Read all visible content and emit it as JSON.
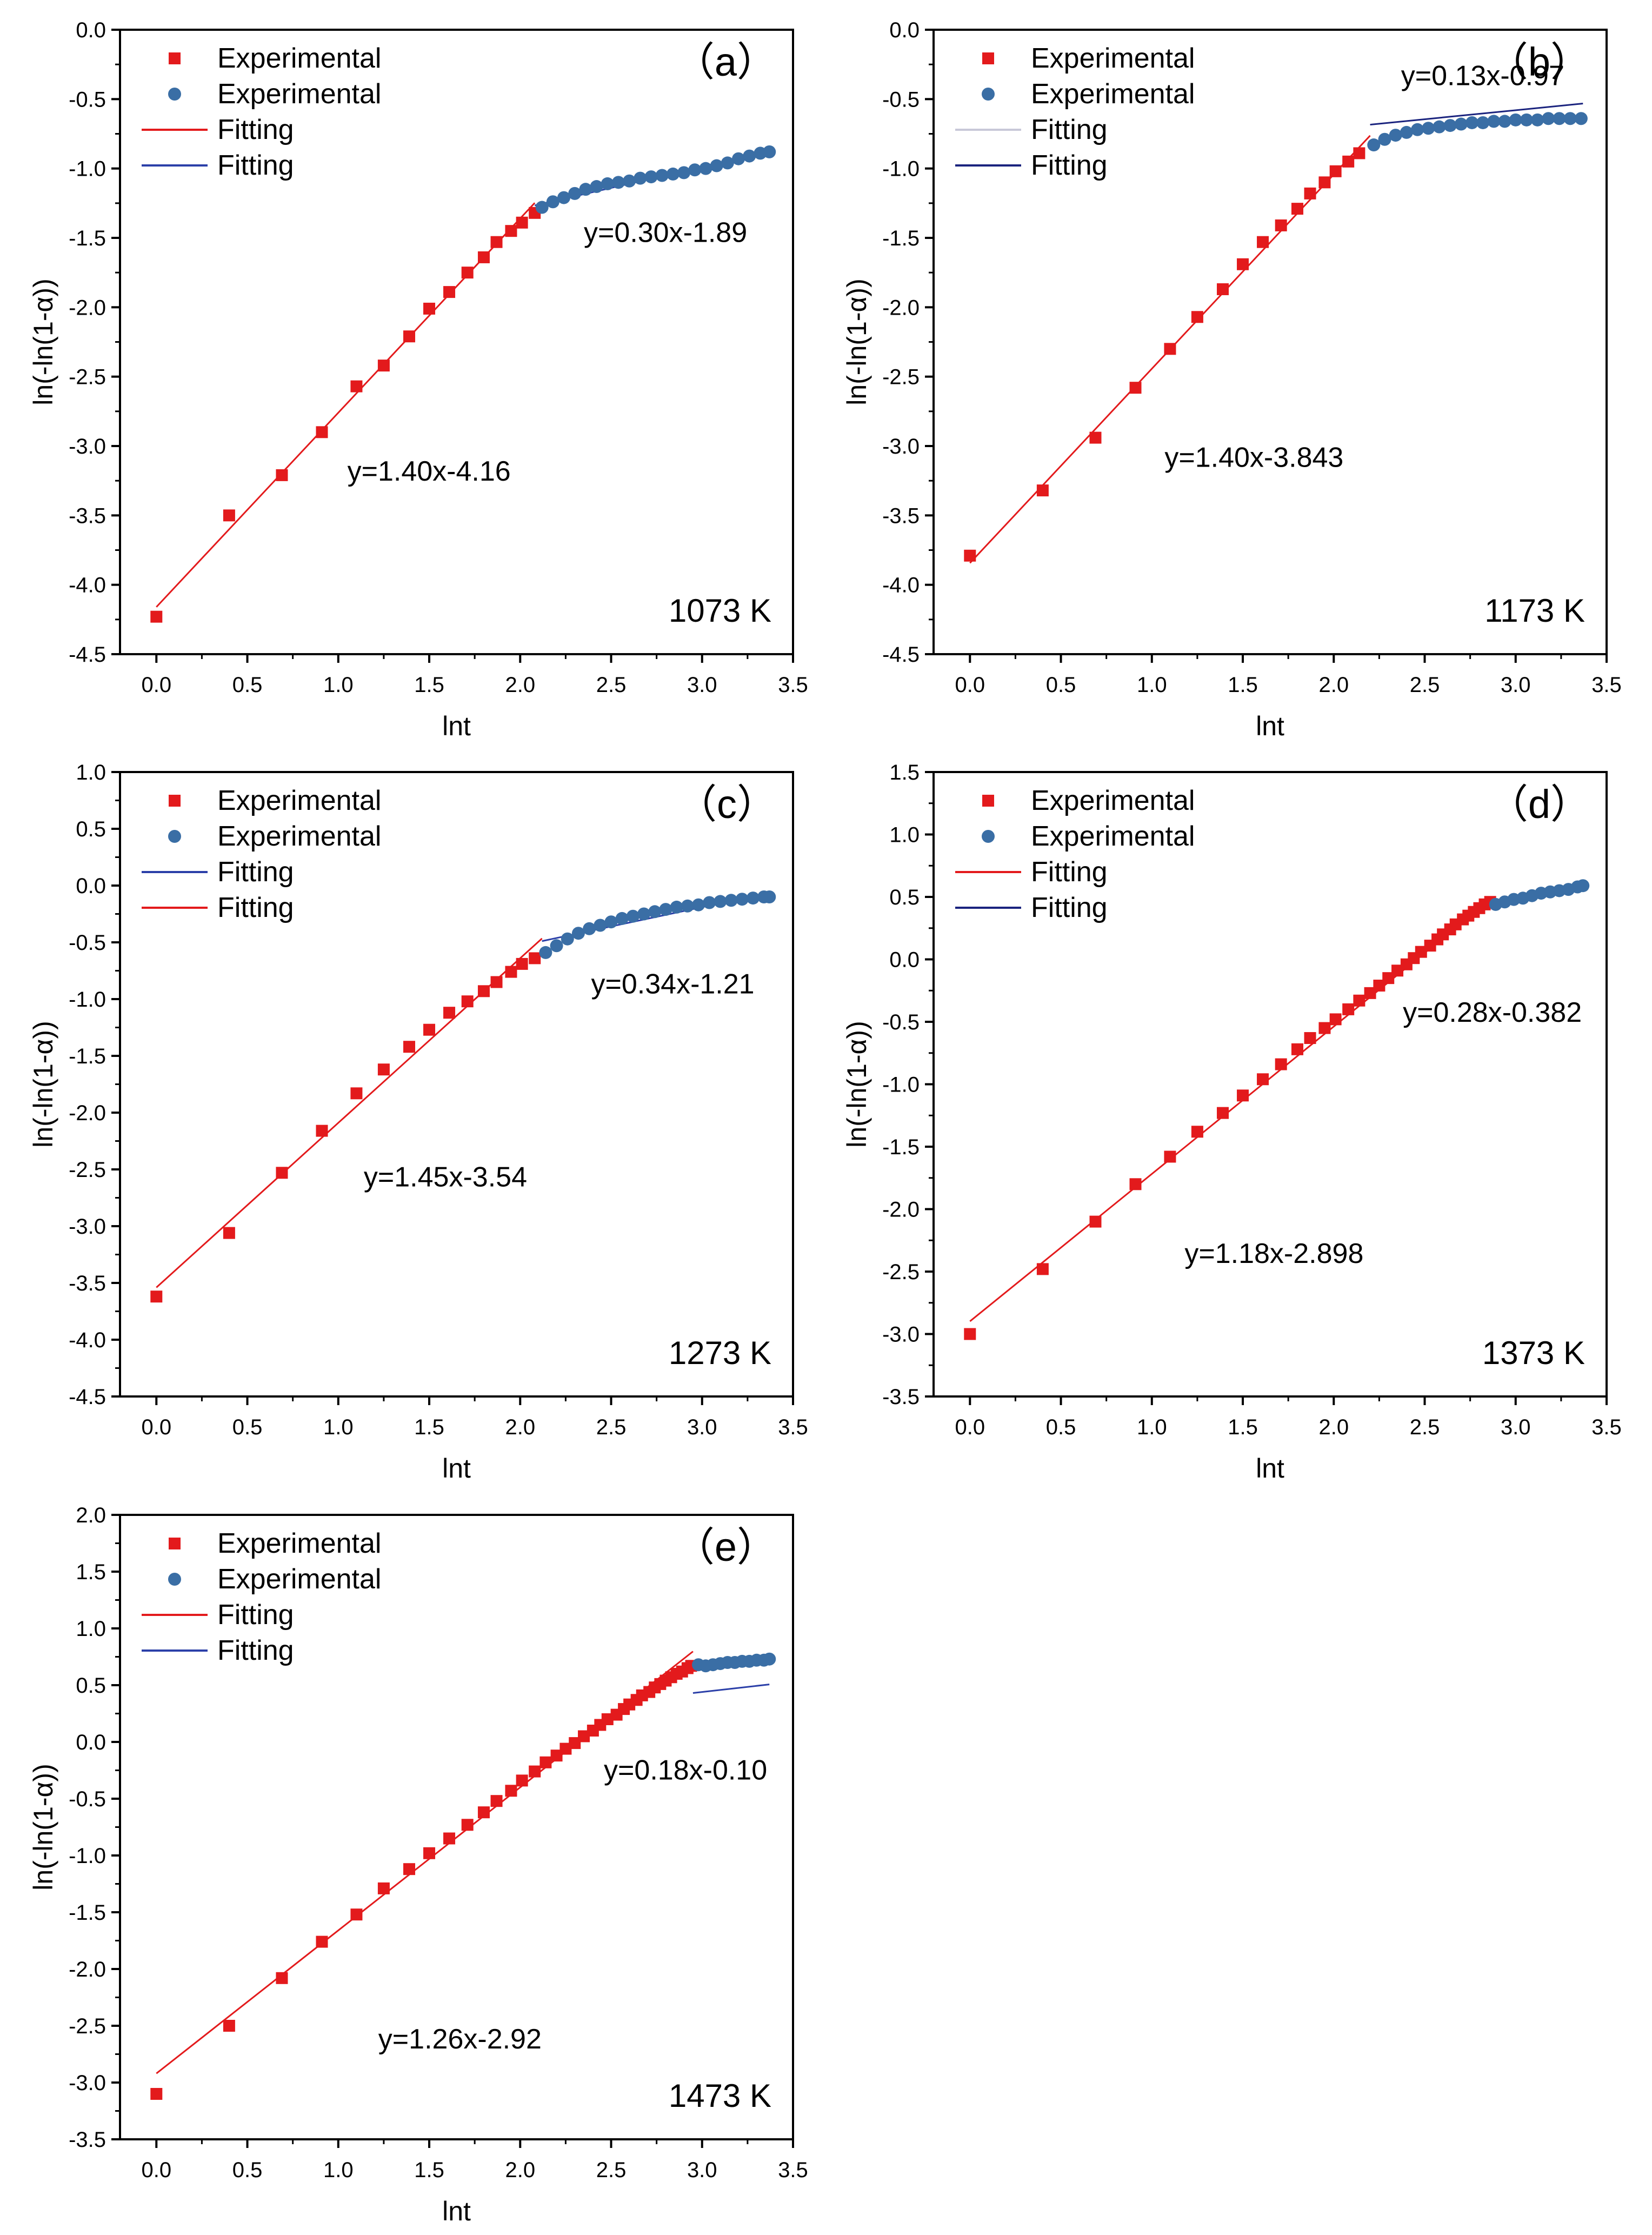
{
  "colors": {
    "red": "#e31a1c",
    "blue": "#3a6ea5",
    "fit_red": "#e31a1c",
    "fit_blue": "#2b3fa8",
    "fit_dark": "#1a237e",
    "fit_light": "#c8c8d8"
  },
  "chart_data": [
    {
      "type": "scatter",
      "panel_label": "（a）",
      "temperature_label": "1073 K",
      "xlabel": "lnt",
      "ylabel": "ln(-ln(1-α))",
      "xlim": [
        -0.2,
        3.5
      ],
      "ylim": [
        -4.5,
        0.0
      ],
      "x_ticks": [
        "0.0",
        "0.5",
        "1.0",
        "1.5",
        "2.0",
        "2.5",
        "3.0",
        "3.5"
      ],
      "y_ticks": [
        "0.0",
        "-0.5",
        "-1.0",
        "-1.5",
        "-2.0",
        "-2.5",
        "-3.0",
        "-3.5",
        "-4.0",
        "-4.5"
      ],
      "legend": [
        "Experimental",
        "Experimental",
        "Fitting",
        "Fitting"
      ],
      "legend_line_colors": [
        "fit_red",
        "fit_blue"
      ],
      "fits": [
        {
          "slope": 1.4,
          "intercept": -4.16,
          "x_range": [
            0.0,
            2.08
          ],
          "color": "fit_red",
          "label": "y=1.40x-4.16"
        },
        {
          "slope": 0.3,
          "intercept": -1.89,
          "x_range": [
            2.08,
            3.37
          ],
          "color": "fit_blue",
          "label": "y=0.30x-1.89"
        }
      ],
      "series": [
        {
          "name": "Experimental (stage 1)",
          "marker": "square",
          "color": "red",
          "x": [
            0.0,
            0.4,
            0.69,
            0.91,
            1.1,
            1.25,
            1.39,
            1.5,
            1.61,
            1.71,
            1.8,
            1.87,
            1.95,
            2.01,
            2.08
          ],
          "y": [
            -4.23,
            -3.5,
            -3.21,
            -2.9,
            -2.57,
            -2.42,
            -2.21,
            -2.01,
            -1.89,
            -1.75,
            -1.64,
            -1.53,
            -1.45,
            -1.39,
            -1.32
          ]
        },
        {
          "name": "Experimental (stage 2)",
          "marker": "circle",
          "color": "blue",
          "x": [
            2.12,
            2.18,
            2.24,
            2.3,
            2.36,
            2.42,
            2.48,
            2.54,
            2.6,
            2.66,
            2.72,
            2.78,
            2.84,
            2.9,
            2.96,
            3.02,
            3.08,
            3.14,
            3.2,
            3.26,
            3.32,
            3.37
          ],
          "y": [
            -1.28,
            -1.24,
            -1.21,
            -1.18,
            -1.15,
            -1.13,
            -1.11,
            -1.1,
            -1.09,
            -1.07,
            -1.06,
            -1.05,
            -1.04,
            -1.03,
            -1.01,
            -1.0,
            -0.98,
            -0.96,
            -0.93,
            -0.91,
            -0.89,
            -0.88
          ]
        }
      ]
    },
    {
      "type": "scatter",
      "panel_label": "（b）",
      "temperature_label": "1173 K",
      "xlabel": "lnt",
      "ylabel": "ln(-ln(1-α))",
      "xlim": [
        -0.2,
        3.5
      ],
      "ylim": [
        -4.5,
        0.0
      ],
      "x_ticks": [
        "0.0",
        "0.5",
        "1.0",
        "1.5",
        "2.0",
        "2.5",
        "3.0",
        "3.5"
      ],
      "y_ticks": [
        "0.0",
        "-0.5",
        "-1.0",
        "-1.5",
        "-2.0",
        "-2.5",
        "-3.0",
        "-3.5",
        "-4.0",
        "-4.5"
      ],
      "legend": [
        "Experimental",
        "Experimental",
        "Fitting",
        "Fitting"
      ],
      "legend_line_colors": [
        "fit_light",
        "fit_dark"
      ],
      "fits": [
        {
          "slope": 1.4,
          "intercept": -3.843,
          "x_range": [
            0.0,
            2.2
          ],
          "color": "fit_red",
          "label": "y=1.40x-3.843"
        },
        {
          "slope": 0.13,
          "intercept": -0.97,
          "x_range": [
            2.2,
            3.37
          ],
          "color": "fit_dark",
          "label": "y=0.13x-0.97"
        }
      ],
      "series": [
        {
          "name": "Experimental (stage 1)",
          "marker": "square",
          "color": "red",
          "x": [
            0.0,
            0.4,
            0.69,
            0.91,
            1.1,
            1.25,
            1.39,
            1.5,
            1.61,
            1.71,
            1.8,
            1.87,
            1.95,
            2.01,
            2.08,
            2.14
          ],
          "y": [
            -3.79,
            -3.32,
            -2.94,
            -2.58,
            -2.3,
            -2.07,
            -1.87,
            -1.69,
            -1.53,
            -1.41,
            -1.29,
            -1.18,
            -1.1,
            -1.02,
            -0.95,
            -0.89
          ]
        },
        {
          "name": "Experimental (stage 2)",
          "marker": "circle",
          "color": "blue",
          "x": [
            2.22,
            2.28,
            2.34,
            2.4,
            2.46,
            2.52,
            2.58,
            2.64,
            2.7,
            2.76,
            2.82,
            2.88,
            2.94,
            3.0,
            3.06,
            3.12,
            3.18,
            3.24,
            3.3,
            3.36
          ],
          "y": [
            -0.83,
            -0.79,
            -0.76,
            -0.74,
            -0.72,
            -0.71,
            -0.7,
            -0.69,
            -0.68,
            -0.67,
            -0.67,
            -0.66,
            -0.66,
            -0.65,
            -0.65,
            -0.65,
            -0.64,
            -0.64,
            -0.64,
            -0.64
          ]
        }
      ]
    },
    {
      "type": "scatter",
      "panel_label": "（c）",
      "temperature_label": "1273 K",
      "xlabel": "lnt",
      "ylabel": "ln(-ln(1-α))",
      "xlim": [
        -0.2,
        3.5
      ],
      "ylim": [
        -4.5,
        1.0
      ],
      "x_ticks": [
        "0.0",
        "0.5",
        "1.0",
        "1.5",
        "2.0",
        "2.5",
        "3.0",
        "3.5"
      ],
      "y_ticks": [
        "1.0",
        "0.5",
        "0.0",
        "-0.5",
        "-1.0",
        "-1.5",
        "-2.0",
        "-2.5",
        "-3.0",
        "-3.5",
        "-4.0",
        "-4.5"
      ],
      "legend": [
        "Experimental",
        "Experimental",
        "Fitting",
        "Fitting"
      ],
      "legend_line_colors": [
        "fit_blue",
        "fit_red"
      ],
      "fits": [
        {
          "slope": 1.45,
          "intercept": -3.54,
          "x_range": [
            0.0,
            2.12
          ],
          "color": "fit_red",
          "label": "y=1.45x-3.54"
        },
        {
          "slope": 0.34,
          "intercept": -1.21,
          "x_range": [
            2.12,
            3.37
          ],
          "color": "fit_blue",
          "label": "y=0.34x-1.21"
        }
      ],
      "series": [
        {
          "name": "Experimental (stage 1)",
          "marker": "square",
          "color": "red",
          "x": [
            0.0,
            0.4,
            0.69,
            0.91,
            1.1,
            1.25,
            1.39,
            1.5,
            1.61,
            1.71,
            1.8,
            1.87,
            1.95,
            2.01,
            2.08
          ],
          "y": [
            -3.62,
            -3.06,
            -2.53,
            -2.16,
            -1.83,
            -1.62,
            -1.42,
            -1.27,
            -1.12,
            -1.02,
            -0.93,
            -0.85,
            -0.76,
            -0.69,
            -0.64
          ]
        },
        {
          "name": "Experimental (stage 2)",
          "marker": "circle",
          "color": "blue",
          "x": [
            2.14,
            2.2,
            2.26,
            2.32,
            2.38,
            2.44,
            2.5,
            2.56,
            2.62,
            2.68,
            2.74,
            2.8,
            2.86,
            2.92,
            2.98,
            3.04,
            3.1,
            3.16,
            3.22,
            3.28,
            3.34,
            3.37
          ],
          "y": [
            -0.59,
            -0.53,
            -0.47,
            -0.42,
            -0.38,
            -0.35,
            -0.32,
            -0.29,
            -0.27,
            -0.25,
            -0.23,
            -0.21,
            -0.19,
            -0.18,
            -0.17,
            -0.15,
            -0.14,
            -0.13,
            -0.12,
            -0.11,
            -0.1,
            -0.1
          ]
        }
      ]
    },
    {
      "type": "scatter",
      "panel_label": "（d）",
      "temperature_label": "1373 K",
      "xlabel": "lnt",
      "ylabel": "ln(-ln(1-α))",
      "xlim": [
        -0.2,
        3.5
      ],
      "ylim": [
        -3.5,
        1.5
      ],
      "x_ticks": [
        "0.0",
        "0.5",
        "1.0",
        "1.5",
        "2.0",
        "2.5",
        "3.0",
        "3.5"
      ],
      "y_ticks": [
        "1.5",
        "1.0",
        "0.5",
        "0.0",
        "-0.5",
        "-1.0",
        "-1.5",
        "-2.0",
        "-2.5",
        "-3.0",
        "-3.5"
      ],
      "legend": [
        "Experimental",
        "Experimental",
        "Fitting",
        "Fitting"
      ],
      "legend_line_colors": [
        "fit_red",
        "fit_dark"
      ],
      "fits": [
        {
          "slope": 1.18,
          "intercept": -2.898,
          "x_range": [
            0.0,
            2.88
          ],
          "color": "fit_red",
          "label": "y=1.18x-2.898"
        },
        {
          "slope": 0.28,
          "intercept": -0.382,
          "x_range": [
            2.88,
            3.37
          ],
          "color": "fit_blue",
          "label": "y=0.28x-0.382"
        }
      ],
      "series": [
        {
          "name": "Experimental (stage 1)",
          "marker": "square",
          "color": "red",
          "x": [
            0.0,
            0.4,
            0.69,
            0.91,
            1.1,
            1.25,
            1.39,
            1.5,
            1.61,
            1.71,
            1.8,
            1.87,
            1.95,
            2.01,
            2.08,
            2.14,
            2.2,
            2.25,
            2.3,
            2.35,
            2.4,
            2.44,
            2.48,
            2.53,
            2.57,
            2.6,
            2.64,
            2.67,
            2.71,
            2.74,
            2.77,
            2.8,
            2.83,
            2.86
          ],
          "y": [
            -3.0,
            -2.48,
            -2.1,
            -1.8,
            -1.58,
            -1.38,
            -1.23,
            -1.09,
            -0.96,
            -0.84,
            -0.72,
            -0.63,
            -0.55,
            -0.48,
            -0.4,
            -0.33,
            -0.27,
            -0.21,
            -0.15,
            -0.09,
            -0.04,
            0.01,
            0.06,
            0.11,
            0.16,
            0.2,
            0.24,
            0.28,
            0.32,
            0.35,
            0.38,
            0.41,
            0.44,
            0.46
          ]
        },
        {
          "name": "Experimental (stage 2)",
          "marker": "circle",
          "color": "blue",
          "x": [
            2.89,
            2.94,
            2.99,
            3.04,
            3.09,
            3.14,
            3.19,
            3.24,
            3.29,
            3.34,
            3.37
          ],
          "y": [
            0.44,
            0.46,
            0.48,
            0.49,
            0.51,
            0.53,
            0.54,
            0.55,
            0.56,
            0.58,
            0.59
          ]
        }
      ]
    },
    {
      "type": "scatter",
      "panel_label": "（e）",
      "temperature_label": "1473 K",
      "xlabel": "lnt",
      "ylabel": "ln(-ln(1-α))",
      "xlim": [
        -0.2,
        3.5
      ],
      "ylim": [
        -3.5,
        2.0
      ],
      "x_ticks": [
        "0.0",
        "0.5",
        "1.0",
        "1.5",
        "2.0",
        "2.5",
        "3.0",
        "3.5"
      ],
      "y_ticks": [
        "2.0",
        "1.5",
        "1.0",
        "0.5",
        "0.0",
        "-0.5",
        "-1.0",
        "-1.5",
        "-2.0",
        "-2.5",
        "-3.0",
        "-3.5"
      ],
      "legend": [
        "Experimental",
        "Experimental",
        "Fitting",
        "Fitting"
      ],
      "legend_line_colors": [
        "fit_red",
        "fit_blue"
      ],
      "fits": [
        {
          "slope": 1.26,
          "intercept": -2.92,
          "x_range": [
            0.0,
            2.95
          ],
          "color": "fit_red",
          "label": "y=1.26x-2.92"
        },
        {
          "slope": 0.18,
          "intercept": -0.1,
          "x_range": [
            2.95,
            3.37
          ],
          "color": "fit_blue",
          "label": "y=0.18x-0.10"
        }
      ],
      "series": [
        {
          "name": "Experimental (stage 1)",
          "marker": "square",
          "color": "red",
          "x": [
            0.0,
            0.4,
            0.69,
            0.91,
            1.1,
            1.25,
            1.39,
            1.5,
            1.61,
            1.71,
            1.8,
            1.87,
            1.95,
            2.01,
            2.08,
            2.14,
            2.2,
            2.25,
            2.3,
            2.35,
            2.4,
            2.44,
            2.48,
            2.53,
            2.57,
            2.6,
            2.64,
            2.67,
            2.71,
            2.74,
            2.77,
            2.8,
            2.83,
            2.86,
            2.89,
            2.92,
            2.94
          ],
          "y": [
            -3.1,
            -2.5,
            -2.08,
            -1.76,
            -1.52,
            -1.29,
            -1.12,
            -0.98,
            -0.85,
            -0.73,
            -0.62,
            -0.52,
            -0.43,
            -0.34,
            -0.26,
            -0.18,
            -0.12,
            -0.06,
            -0.01,
            0.05,
            0.1,
            0.15,
            0.2,
            0.24,
            0.29,
            0.33,
            0.37,
            0.41,
            0.44,
            0.48,
            0.51,
            0.54,
            0.57,
            0.6,
            0.62,
            0.65,
            0.67
          ]
        },
        {
          "name": "Experimental (stage 2)",
          "marker": "circle",
          "color": "blue",
          "x": [
            2.98,
            3.02,
            3.06,
            3.1,
            3.14,
            3.18,
            3.22,
            3.26,
            3.3,
            3.34,
            3.37
          ],
          "y": [
            0.68,
            0.67,
            0.68,
            0.69,
            0.7,
            0.7,
            0.71,
            0.71,
            0.72,
            0.72,
            0.73
          ]
        }
      ]
    }
  ]
}
